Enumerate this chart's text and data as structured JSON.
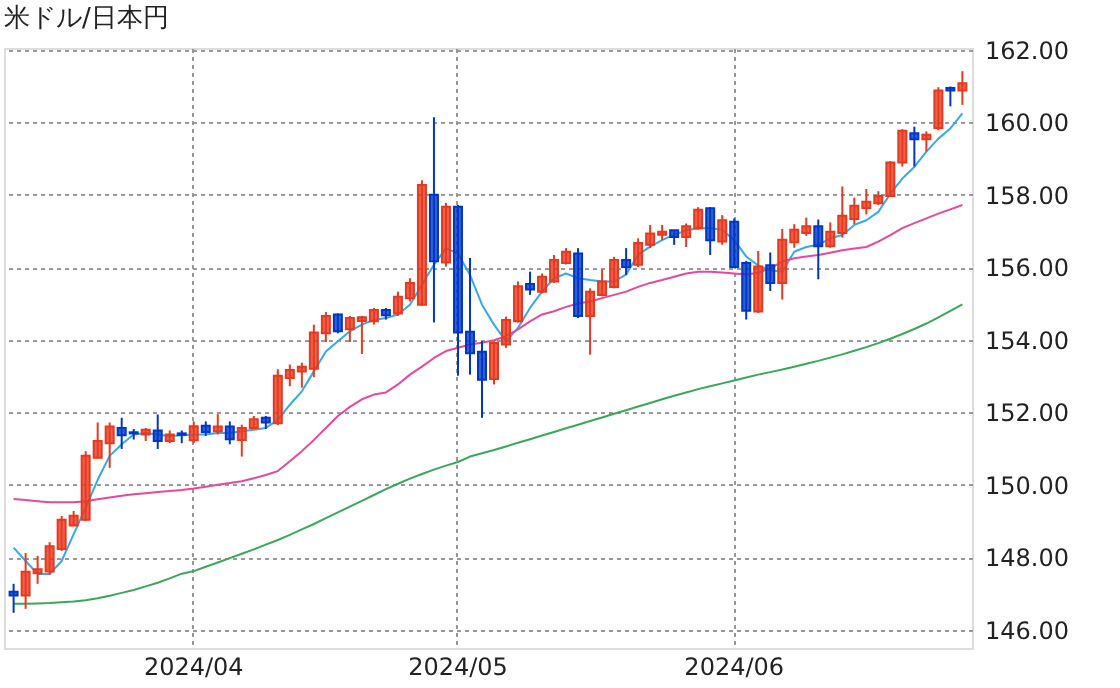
{
  "chart_data": {
    "type": "candlestick",
    "title": "米ドル/日本円",
    "categories": [
      null,
      null,
      null,
      null,
      null,
      null,
      null,
      null,
      null,
      null,
      null,
      null,
      null,
      null,
      null,
      "2024/04",
      null,
      null,
      null,
      null,
      null,
      null,
      null,
      null,
      null,
      null,
      null,
      null,
      null,
      null,
      null,
      null,
      null,
      null,
      null,
      null,
      null,
      "2024/05",
      null,
      null,
      null,
      null,
      null,
      null,
      null,
      null,
      null,
      null,
      null,
      null,
      null,
      null,
      null,
      null,
      null,
      null,
      null,
      null,
      null,
      null,
      "2024/06",
      null,
      null,
      null,
      null,
      null,
      null,
      null,
      null,
      null,
      null,
      null,
      null,
      null,
      null,
      null,
      null,
      null,
      null,
      null
    ],
    "ohlc": [
      [
        147.05,
        147.27,
        146.47,
        146.95
      ],
      [
        146.95,
        148.12,
        146.58,
        147.6
      ],
      [
        147.56,
        148.04,
        147.27,
        147.67
      ],
      [
        147.61,
        148.42,
        147.52,
        148.31
      ],
      [
        148.23,
        149.14,
        148.18,
        149.04
      ],
      [
        148.88,
        149.28,
        148.86,
        149.15
      ],
      [
        149.04,
        150.93,
        149.0,
        150.8
      ],
      [
        150.75,
        151.72,
        150.73,
        151.21
      ],
      [
        151.15,
        151.72,
        150.47,
        151.61
      ],
      [
        151.57,
        151.85,
        150.99,
        151.37
      ],
      [
        151.45,
        151.54,
        151.25,
        151.42
      ],
      [
        151.39,
        151.57,
        151.21,
        151.52
      ],
      [
        151.5,
        151.94,
        150.99,
        151.21
      ],
      [
        151.21,
        151.5,
        151.15,
        151.39
      ],
      [
        151.42,
        151.5,
        151.15,
        151.38
      ],
      [
        151.23,
        151.75,
        151.15,
        151.62
      ],
      [
        151.63,
        151.75,
        151.35,
        151.46
      ],
      [
        151.48,
        151.95,
        151.39,
        151.61
      ],
      [
        151.61,
        151.75,
        151.12,
        151.26
      ],
      [
        151.24,
        151.66,
        150.78,
        151.57
      ],
      [
        151.57,
        151.9,
        151.54,
        151.81
      ],
      [
        151.85,
        151.9,
        151.54,
        151.72
      ],
      [
        151.7,
        153.19,
        151.65,
        153.01
      ],
      [
        152.95,
        153.32,
        152.72,
        153.17
      ],
      [
        153.13,
        153.37,
        152.68,
        153.26
      ],
      [
        153.2,
        154.42,
        152.97,
        154.2
      ],
      [
        154.18,
        154.77,
        153.94,
        154.66
      ],
      [
        154.7,
        154.73,
        154.18,
        154.24
      ],
      [
        154.29,
        154.66,
        153.94,
        154.6
      ],
      [
        154.52,
        154.66,
        153.61,
        154.62
      ],
      [
        154.51,
        154.88,
        154.42,
        154.82
      ],
      [
        154.82,
        154.88,
        154.56,
        154.68
      ],
      [
        154.73,
        155.33,
        154.66,
        155.19
      ],
      [
        155.15,
        155.7,
        155.06,
        155.57
      ],
      [
        154.97,
        158.4,
        154.94,
        158.27
      ],
      [
        158.0,
        160.14,
        154.48,
        156.17
      ],
      [
        156.13,
        157.78,
        156.02,
        157.67
      ],
      [
        157.67,
        157.72,
        153.01,
        154.2
      ],
      [
        154.22,
        156.26,
        153.04,
        153.63
      ],
      [
        153.67,
        153.96,
        151.85,
        152.9
      ],
      [
        152.92,
        153.96,
        152.77,
        153.91
      ],
      [
        153.87,
        154.64,
        153.78,
        154.55
      ],
      [
        154.51,
        155.61,
        154.48,
        155.48
      ],
      [
        155.54,
        155.88,
        155.24,
        155.39
      ],
      [
        155.33,
        155.83,
        155.28,
        155.74
      ],
      [
        155.61,
        156.34,
        155.57,
        156.2
      ],
      [
        156.12,
        156.53,
        156.08,
        156.43
      ],
      [
        156.38,
        156.53,
        154.6,
        154.66
      ],
      [
        154.66,
        155.42,
        153.59,
        155.33
      ],
      [
        155.24,
        155.94,
        155.2,
        155.61
      ],
      [
        155.46,
        156.29,
        155.42,
        156.2
      ],
      [
        156.2,
        156.53,
        155.79,
        156.01
      ],
      [
        156.07,
        156.8,
        156.01,
        156.67
      ],
      [
        156.62,
        157.17,
        156.53,
        156.93
      ],
      [
        156.9,
        157.17,
        156.75,
        156.98
      ],
      [
        157.02,
        157.02,
        156.62,
        156.84
      ],
      [
        156.84,
        157.21,
        156.56,
        157.13
      ],
      [
        157.08,
        157.66,
        157.04,
        157.59
      ],
      [
        157.63,
        157.66,
        156.34,
        156.75
      ],
      [
        156.71,
        157.44,
        156.62,
        157.3
      ],
      [
        157.26,
        157.35,
        155.98,
        156.01
      ],
      [
        156.12,
        156.18,
        154.56,
        154.8
      ],
      [
        154.78,
        156.45,
        154.74,
        156.02
      ],
      [
        156.06,
        156.41,
        155.35,
        155.57
      ],
      [
        155.57,
        157.06,
        155.11,
        156.76
      ],
      [
        156.69,
        157.19,
        156.54,
        157.04
      ],
      [
        156.95,
        157.37,
        156.87,
        157.13
      ],
      [
        157.13,
        157.32,
        155.67,
        156.58
      ],
      [
        156.58,
        157.24,
        156.54,
        156.98
      ],
      [
        156.95,
        158.23,
        156.82,
        157.42
      ],
      [
        157.33,
        157.92,
        157.19,
        157.7
      ],
      [
        157.64,
        158.16,
        157.46,
        157.81
      ],
      [
        157.77,
        158.1,
        157.72,
        157.97
      ],
      [
        157.97,
        158.93,
        157.94,
        158.89
      ],
      [
        158.89,
        159.81,
        158.78,
        159.77
      ],
      [
        159.7,
        159.88,
        158.78,
        159.53
      ],
      [
        159.53,
        159.75,
        159.2,
        159.66
      ],
      [
        159.84,
        160.97,
        159.78,
        160.88
      ],
      [
        160.95,
        160.99,
        160.44,
        160.88
      ],
      [
        160.88,
        161.41,
        160.48,
        161.08
      ]
    ],
    "colors": [
      "#0037c8",
      "#e8391f",
      "#e8391f",
      "#e8391f",
      "#e8391f",
      "#e8391f",
      "#e8391f",
      "#e8391f",
      "#e8391f",
      "#0037c8",
      "#0037c8",
      "#e8391f",
      "#0037c8",
      "#e8391f",
      "#0037c8",
      "#e8391f",
      "#0037c8",
      "#e8391f",
      "#0037c8",
      "#e8391f",
      "#e8391f",
      "#0037c8",
      "#e8391f",
      "#e8391f",
      "#e8391f",
      "#e8391f",
      "#e8391f",
      "#0037c8",
      "#e8391f",
      "#e8391f",
      "#e8391f",
      "#0037c8",
      "#e8391f",
      "#e8391f",
      "#e8391f",
      "#0037c8",
      "#e8391f",
      "#0037c8",
      "#0037c8",
      "#0037c8",
      "#e8391f",
      "#e8391f",
      "#e8391f",
      "#0037c8",
      "#e8391f",
      "#e8391f",
      "#e8391f",
      "#0037c8",
      "#e8391f",
      "#e8391f",
      "#e8391f",
      "#0037c8",
      "#e8391f",
      "#e8391f",
      "#e8391f",
      "#0037c8",
      "#e8391f",
      "#e8391f",
      "#0037c8",
      "#e8391f",
      "#0037c8",
      "#0037c8",
      "#e8391f",
      "#0037c8",
      "#e8391f",
      "#e8391f",
      "#e8391f",
      "#0037c8",
      "#e8391f",
      "#e8391f",
      "#e8391f",
      "#e8391f",
      "#e8391f",
      "#e8391f",
      "#e8391f",
      "#0037c8",
      "#e8391f",
      "#e8391f",
      "#0037c8",
      "#e8391f"
    ],
    "series": [
      {
        "type": "line",
        "color": "#3aa8e8",
        "values": [
          148.27,
          147.9,
          147.54,
          147.54,
          147.9,
          148.64,
          149.37,
          150.14,
          150.8,
          151.12,
          151.39,
          151.43,
          151.39,
          151.34,
          151.37,
          151.39,
          151.39,
          151.43,
          151.43,
          151.48,
          151.52,
          151.57,
          151.79,
          152.21,
          152.58,
          153.13,
          153.68,
          153.96,
          154.24,
          154.42,
          154.55,
          154.6,
          154.7,
          154.97,
          155.52,
          156.07,
          156.53,
          156.38,
          155.79,
          154.97,
          154.42,
          153.96,
          154.33,
          154.88,
          155.33,
          155.7,
          155.83,
          155.7,
          155.65,
          155.61,
          155.61,
          155.8,
          156.35,
          156.57,
          156.75,
          156.9,
          157.02,
          157.08,
          157.08,
          157.04,
          156.75,
          156.3,
          156.05,
          155.92,
          155.88,
          156.43,
          156.56,
          156.62,
          156.8,
          156.89,
          157.17,
          157.3,
          157.53,
          158.03,
          158.45,
          158.77,
          159.19,
          159.55,
          159.83,
          160.25
        ]
      },
      {
        "type": "line",
        "color": "#e8489a",
        "values": [
          149.61,
          149.58,
          149.55,
          149.52,
          149.52,
          149.52,
          149.55,
          149.6,
          149.65,
          149.7,
          149.74,
          149.77,
          149.8,
          149.83,
          149.86,
          149.9,
          149.95,
          150.0,
          150.05,
          150.1,
          150.18,
          150.27,
          150.38,
          150.65,
          150.93,
          151.24,
          151.57,
          151.9,
          152.15,
          152.36,
          152.49,
          152.55,
          152.77,
          153.04,
          153.26,
          153.5,
          153.69,
          153.78,
          153.87,
          153.92,
          153.99,
          154.1,
          154.29,
          154.51,
          154.7,
          154.79,
          154.91,
          155.0,
          155.06,
          155.15,
          155.24,
          155.33,
          155.46,
          155.57,
          155.65,
          155.74,
          155.83,
          155.88,
          155.88,
          155.86,
          155.83,
          155.8,
          155.85,
          155.97,
          156.16,
          156.25,
          156.3,
          156.34,
          156.4,
          156.47,
          156.52,
          156.56,
          156.71,
          156.89,
          157.08,
          157.22,
          157.35,
          157.48,
          157.6,
          157.72
        ]
      },
      {
        "type": "line",
        "color": "#3aa85a",
        "values": [
          146.72,
          146.72,
          146.73,
          146.74,
          146.76,
          146.78,
          146.82,
          146.87,
          146.94,
          147.02,
          147.1,
          147.2,
          147.3,
          147.42,
          147.55,
          147.62,
          147.74,
          147.86,
          147.98,
          148.1,
          148.22,
          148.35,
          148.48,
          148.62,
          148.77,
          148.92,
          149.08,
          149.24,
          149.4,
          149.56,
          149.72,
          149.88,
          150.03,
          150.17,
          150.3,
          150.42,
          150.53,
          150.63,
          150.78,
          150.87,
          150.96,
          151.06,
          151.16,
          151.26,
          151.36,
          151.46,
          151.56,
          151.66,
          151.76,
          151.86,
          151.96,
          152.06,
          152.16,
          152.26,
          152.36,
          152.46,
          152.55,
          152.64,
          152.72,
          152.8,
          152.88,
          152.96,
          153.04,
          153.11,
          153.18,
          153.26,
          153.34,
          153.42,
          153.51,
          153.6,
          153.7,
          153.8,
          153.91,
          154.03,
          154.16,
          154.3,
          154.45,
          154.62,
          154.8,
          154.98
        ]
      }
    ],
    "ylim": [
      145.5,
      162.05
    ],
    "yticks": [
      {
        "value": 146,
        "label": "146.00"
      },
      {
        "value": 148,
        "label": "148.00"
      },
      {
        "value": 150,
        "label": "150.00"
      },
      {
        "value": 152,
        "label": "152.00"
      },
      {
        "value": 154,
        "label": "154.00"
      },
      {
        "value": 156,
        "label": "156.00"
      },
      {
        "value": 158,
        "label": "158.00"
      },
      {
        "value": 160,
        "label": "160.00"
      },
      {
        "value": 162,
        "label": "162.00"
      }
    ],
    "grid": true
  }
}
